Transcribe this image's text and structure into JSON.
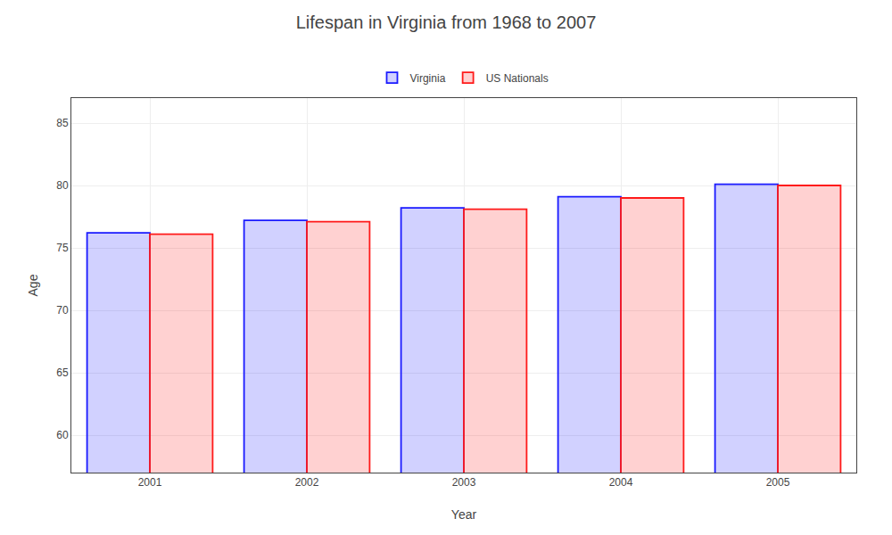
{
  "chart_data": {
    "type": "bar",
    "title": "Lifespan in Virginia from 1968 to 2007",
    "xlabel": "Year",
    "ylabel": "Age",
    "categories": [
      "2001",
      "2002",
      "2003",
      "2004",
      "2005"
    ],
    "series": [
      {
        "name": "Virginia",
        "color": "#1a1aff",
        "values": [
          76.2,
          77.2,
          78.2,
          79.1,
          80.1
        ]
      },
      {
        "name": "US Nationals",
        "color": "#ff1a1a",
        "values": [
          76.1,
          77.1,
          78.1,
          79.0,
          80.0
        ]
      }
    ],
    "ylim": [
      57,
      87
    ],
    "yticks": [
      60,
      65,
      70,
      75,
      80,
      85
    ],
    "grid": true,
    "legend": "upper center"
  }
}
